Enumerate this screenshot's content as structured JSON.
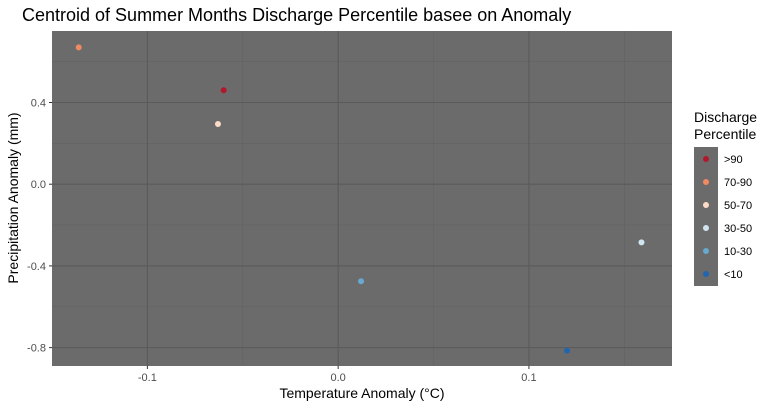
{
  "chart_data": {
    "type": "scatter",
    "title": "Centroid of Summer Months Discharge Percentile basee on Anomaly",
    "xlabel": "Temperature Anomaly (°C)",
    "ylabel": "Precipitation Anomaly (mm)",
    "xlim": [
      -0.15,
      0.175
    ],
    "ylim": [
      -0.89,
      0.75
    ],
    "x_ticks": [
      -0.1,
      0.0,
      0.1
    ],
    "x_tick_labels": [
      "-0.1",
      "0.0",
      "0.1"
    ],
    "y_ticks": [
      -0.8,
      -0.4,
      0.0,
      0.4
    ],
    "y_tick_labels": [
      "-0.8",
      "-0.4",
      "0.0",
      "0.4"
    ],
    "grid": true,
    "panel_background": "#6b6b6b",
    "legend": {
      "title_lines": [
        "Discharge",
        "Percentile"
      ],
      "placement": "right",
      "background": "#6b6b6b"
    },
    "series": [
      {
        "name": ">90",
        "color": "#b2182b",
        "x": -0.06,
        "y": 0.46
      },
      {
        "name": "70-90",
        "color": "#ef8a62",
        "x": -0.136,
        "y": 0.67
      },
      {
        "name": "50-70",
        "color": "#fddbc7",
        "x": -0.063,
        "y": 0.295
      },
      {
        "name": "30-50",
        "color": "#d1e5f0",
        "x": 0.159,
        "y": -0.285
      },
      {
        "name": "10-30",
        "color": "#67a9cf",
        "x": 0.012,
        "y": -0.475
      },
      {
        "name": "<10",
        "color": "#2166ac",
        "x": 0.12,
        "y": -0.815
      }
    ]
  }
}
